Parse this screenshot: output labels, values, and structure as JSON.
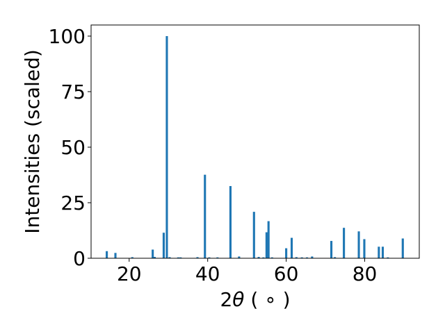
{
  "chart_data": {
    "type": "bar",
    "xlabel_main": "2",
    "xlabel_theta": "θ",
    "xlabel_unit": " ( ∘ )",
    "ylabel": "Intensities (scaled)",
    "xlim": [
      10.3,
      93.9
    ],
    "ylim": [
      0,
      105
    ],
    "grid": false,
    "bar_width_deg": 0.55,
    "x_ticks": [
      {
        "value": 20,
        "label": "20"
      },
      {
        "value": 40,
        "label": "40"
      },
      {
        "value": 60,
        "label": "60"
      },
      {
        "value": 80,
        "label": "80"
      }
    ],
    "y_ticks": [
      {
        "value": 0,
        "label": "0"
      },
      {
        "value": 25,
        "label": "25"
      },
      {
        "value": 50,
        "label": "50"
      },
      {
        "value": 75,
        "label": "75"
      },
      {
        "value": 100,
        "label": "100"
      }
    ],
    "bar_color": "#1f77b4",
    "bars": [
      {
        "x": 14.3,
        "y": 3.2
      },
      {
        "x": 16.5,
        "y": 2.4
      },
      {
        "x": 20.8,
        "y": 0.5
      },
      {
        "x": 26.0,
        "y": 3.9
      },
      {
        "x": 26.5,
        "y": 0.6
      },
      {
        "x": 28.8,
        "y": 11.5
      },
      {
        "x": 29.6,
        "y": 100
      },
      {
        "x": 30.3,
        "y": 0.5
      },
      {
        "x": 32.5,
        "y": 0.4
      },
      {
        "x": 33.1,
        "y": 0.4
      },
      {
        "x": 37.4,
        "y": 0.5
      },
      {
        "x": 39.3,
        "y": 37.6
      },
      {
        "x": 40.4,
        "y": 0.4
      },
      {
        "x": 42.5,
        "y": 0.4
      },
      {
        "x": 45.8,
        "y": 32.5
      },
      {
        "x": 48.0,
        "y": 0.8
      },
      {
        "x": 51.8,
        "y": 20.9
      },
      {
        "x": 53.0,
        "y": 0.6
      },
      {
        "x": 54.2,
        "y": 0.4
      },
      {
        "x": 55.0,
        "y": 11.7
      },
      {
        "x": 55.5,
        "y": 16.7
      },
      {
        "x": 56.4,
        "y": 0.4
      },
      {
        "x": 60.0,
        "y": 4.5
      },
      {
        "x": 61.4,
        "y": 9.2
      },
      {
        "x": 62.6,
        "y": 0.5
      },
      {
        "x": 64.0,
        "y": 0.4
      },
      {
        "x": 65.3,
        "y": 0.4
      },
      {
        "x": 66.6,
        "y": 0.8
      },
      {
        "x": 71.5,
        "y": 7.8
      },
      {
        "x": 72.4,
        "y": 0.5
      },
      {
        "x": 74.7,
        "y": 13.7
      },
      {
        "x": 78.5,
        "y": 12.1
      },
      {
        "x": 79.9,
        "y": 8.6
      },
      {
        "x": 83.6,
        "y": 5.2
      },
      {
        "x": 84.6,
        "y": 5.2
      },
      {
        "x": 85.9,
        "y": 0.4
      },
      {
        "x": 89.7,
        "y": 8.9
      }
    ]
  }
}
